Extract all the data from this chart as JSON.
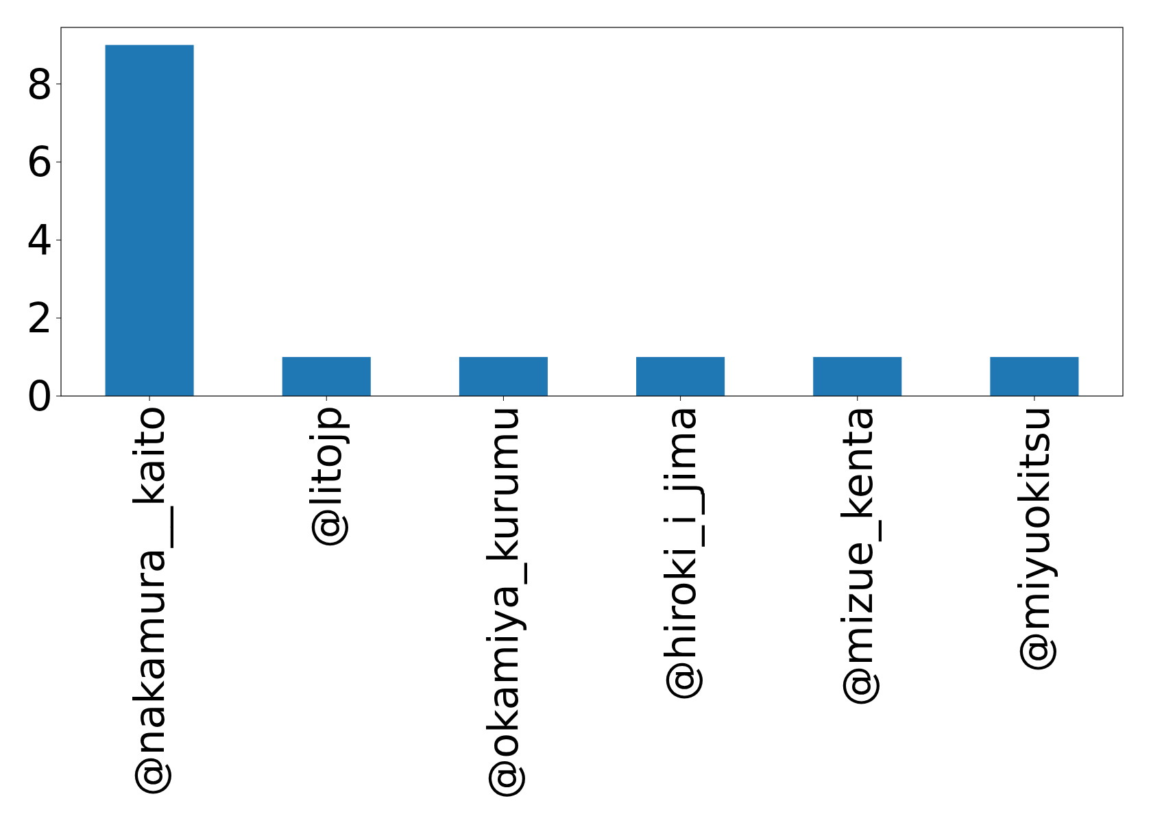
{
  "chart_data": {
    "type": "bar",
    "categories": [
      "@nakamura__kaito",
      "@litojp",
      "@okamiya_kurumu",
      "@hiroki_i_jima",
      "@mizue_kenta",
      "@miyuokitsu"
    ],
    "values": [
      9,
      1,
      1,
      1,
      1,
      1
    ],
    "color": "#1f77b4",
    "ylim": [
      0,
      9.45
    ],
    "yticks": [
      0,
      2,
      4,
      6,
      8
    ],
    "grid": false
  }
}
